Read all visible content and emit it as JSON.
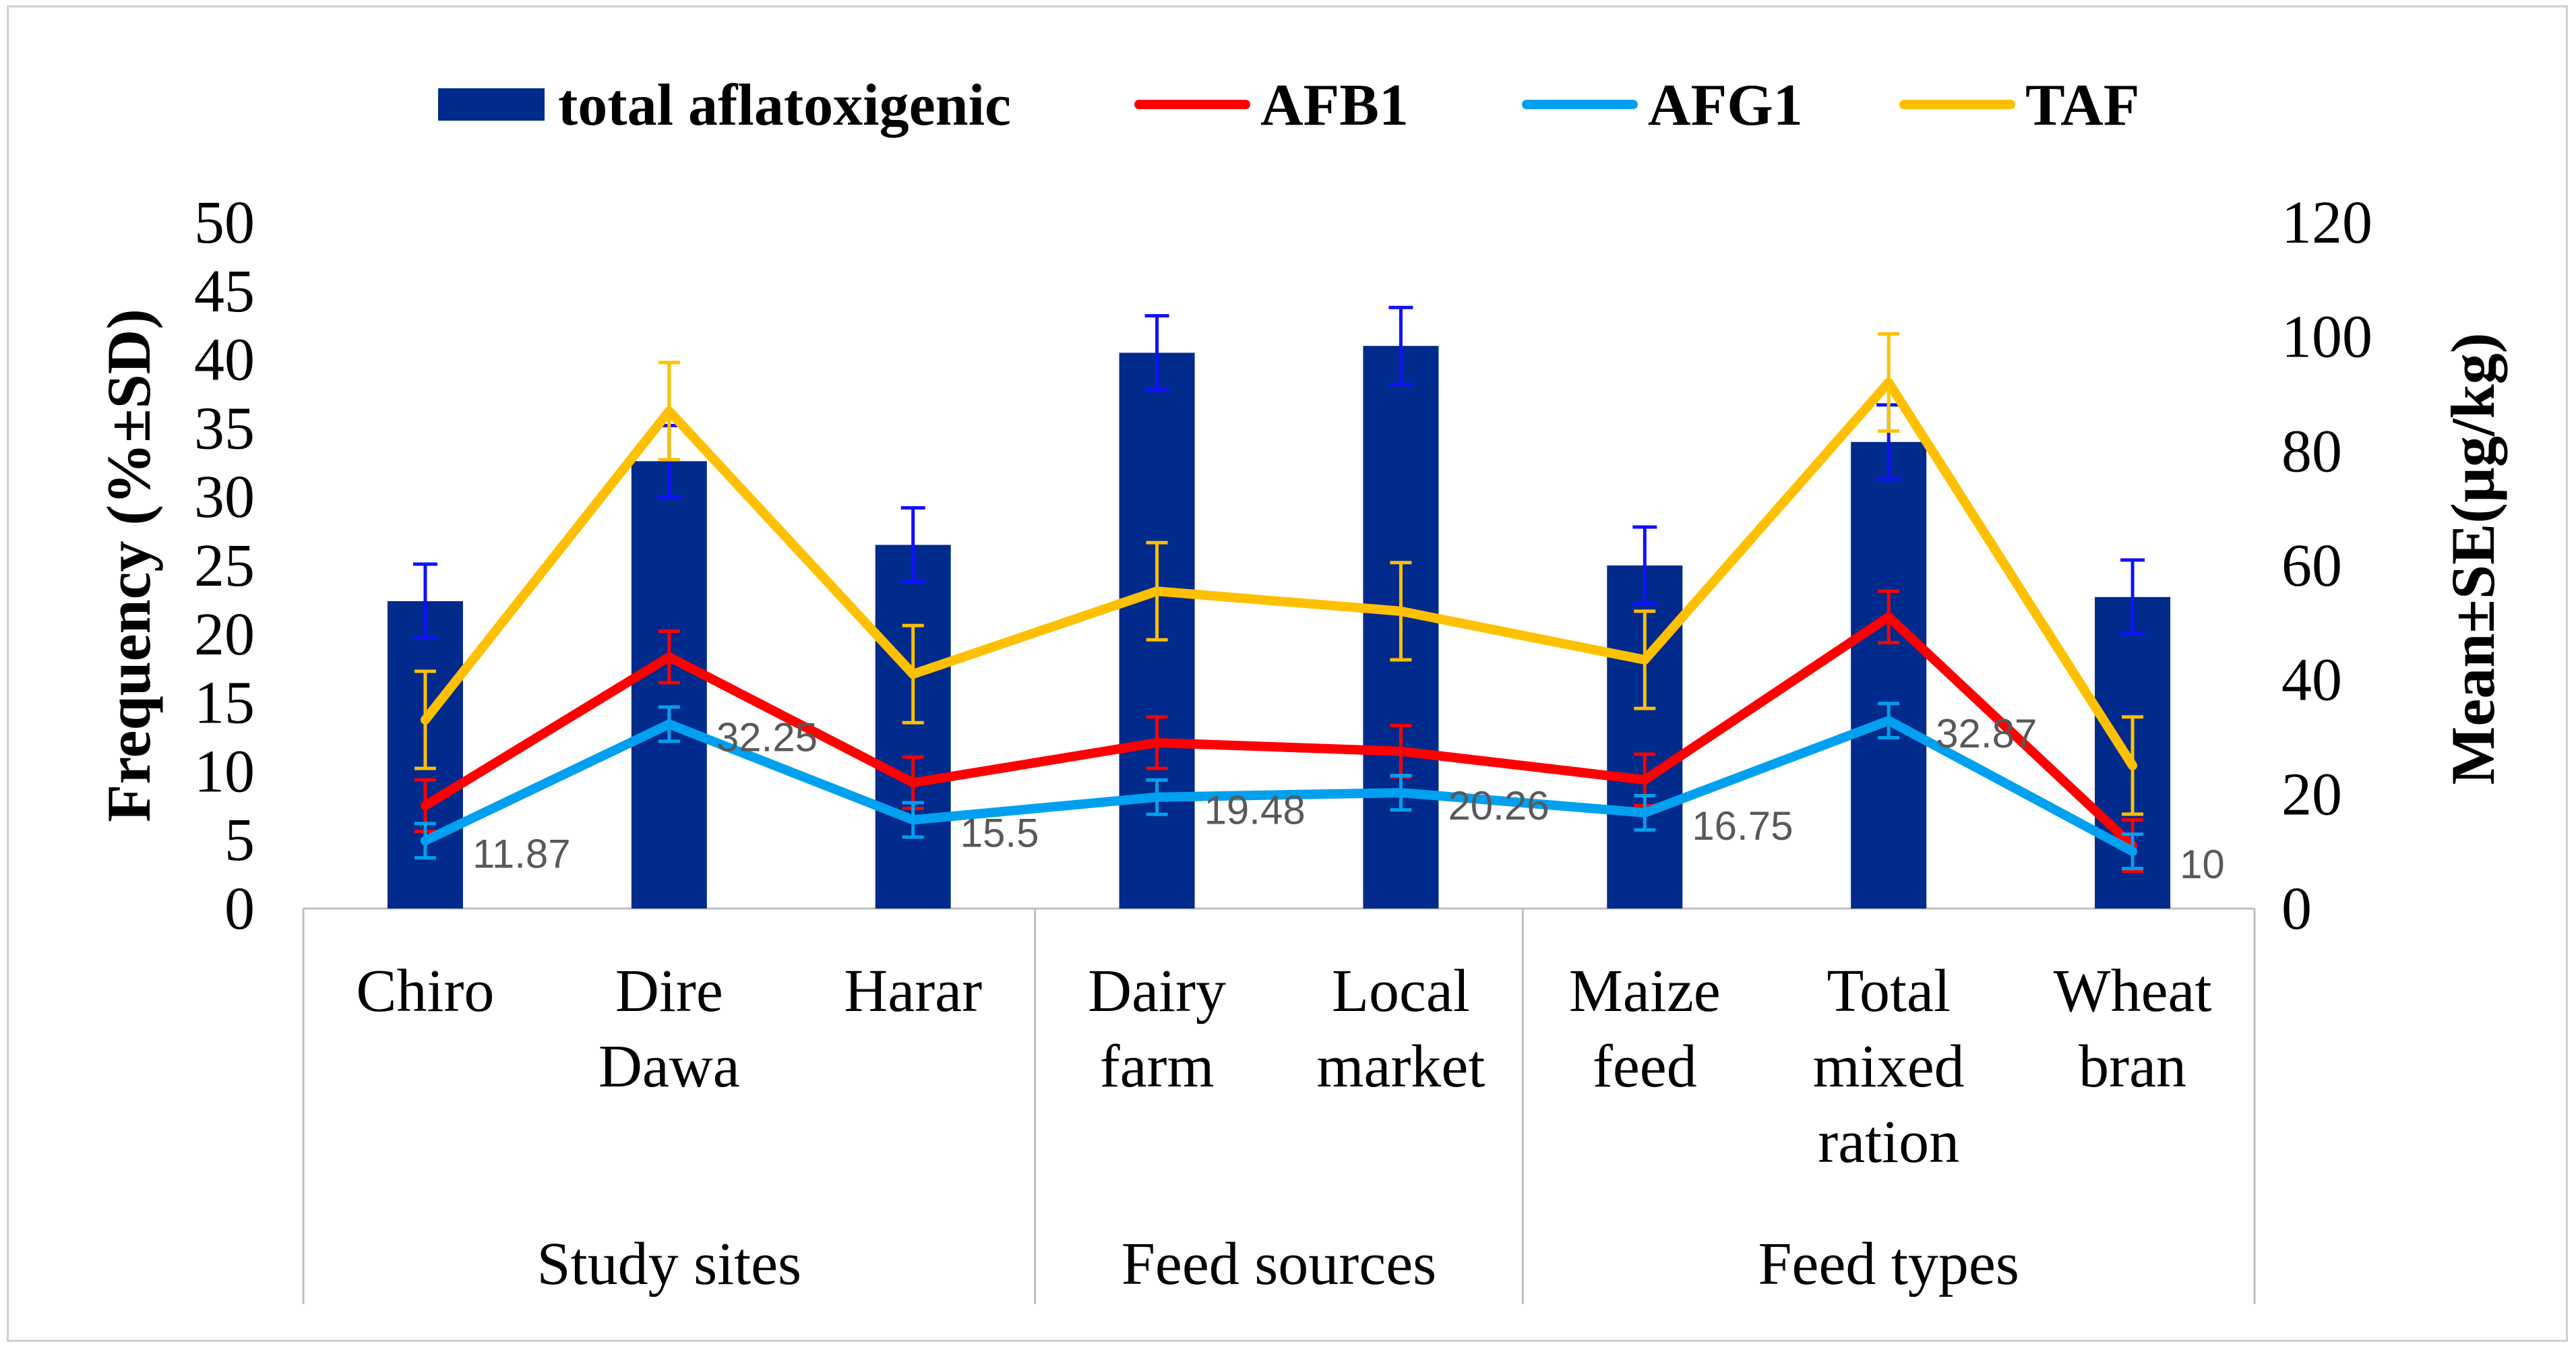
{
  "chart_data": {
    "type": "bar+line",
    "title": "",
    "legend": {
      "position": "top",
      "entries": [
        {
          "name": "total aflatoxigenic",
          "kind": "bar"
        },
        {
          "name": "AFB1",
          "kind": "line"
        },
        {
          "name": "AFG1",
          "kind": "line"
        },
        {
          "name": "TAF",
          "kind": "line"
        }
      ]
    },
    "categories": [
      {
        "label": [
          "Chiro"
        ],
        "group": "Study sites"
      },
      {
        "label": [
          "Dire",
          "Dawa"
        ],
        "group": "Study sites"
      },
      {
        "label": [
          "Harar"
        ],
        "group": "Study sites"
      },
      {
        "label": [
          "Dairy",
          "farm"
        ],
        "group": "Feed sources"
      },
      {
        "label": [
          "Local",
          "market"
        ],
        "group": "Feed sources"
      },
      {
        "label": [
          "Maize",
          "feed"
        ],
        "group": "Feed types"
      },
      {
        "label": [
          "Total",
          "mixed",
          "ration"
        ],
        "group": "Feed types"
      },
      {
        "label": [
          "Wheat",
          "bran"
        ],
        "group": "Feed types"
      }
    ],
    "groups": [
      "Study sites",
      "Feed sources",
      "Feed types"
    ],
    "y_left": {
      "label": "Frequency (%±SD)",
      "min": 0,
      "max": 50,
      "step": 5
    },
    "y_right": {
      "label": "Mean±SE(µg/kg)",
      "min": 0,
      "max": 120,
      "step": 20
    },
    "series": [
      {
        "name": "total aflatoxigenic",
        "type": "bar",
        "axis": "left",
        "color": "#002A8C",
        "error_color": "#1010FF",
        "values": [
          22.4,
          32.6,
          26.5,
          40.5,
          41.0,
          25.0,
          34.0,
          22.7
        ],
        "errors": [
          2.7,
          2.6,
          2.7,
          2.7,
          2.8,
          2.8,
          2.7,
          2.7
        ]
      },
      {
        "name": "AFB1",
        "type": "line",
        "axis": "right",
        "color": "#FF0000",
        "values": [
          18,
          44,
          22,
          29,
          27.5,
          22.5,
          51,
          11
        ],
        "errors": [
          4.5,
          4.5,
          4.5,
          4.5,
          4.5,
          4.5,
          4.5,
          4.5
        ]
      },
      {
        "name": "AFG1",
        "type": "line",
        "axis": "right",
        "color": "#00A0F0",
        "values": [
          11.87,
          32.25,
          15.5,
          19.48,
          20.26,
          16.75,
          32.87,
          10
        ],
        "errors": [
          3.0,
          3.0,
          3.0,
          3.0,
          3.0,
          3.0,
          3.0,
          3.0
        ],
        "data_labels": [
          "11.87",
          "32.25",
          "15.5",
          "19.48",
          "20.26",
          "16.75",
          "32.87",
          "10"
        ]
      },
      {
        "name": "TAF",
        "type": "line",
        "axis": "right",
        "color": "#FFC000",
        "values": [
          33,
          87,
          41,
          55.5,
          52,
          43.5,
          92,
          25
        ],
        "errors": [
          8.5,
          8.5,
          8.5,
          8.5,
          8.5,
          8.5,
          8.5,
          8.5
        ]
      }
    ]
  }
}
